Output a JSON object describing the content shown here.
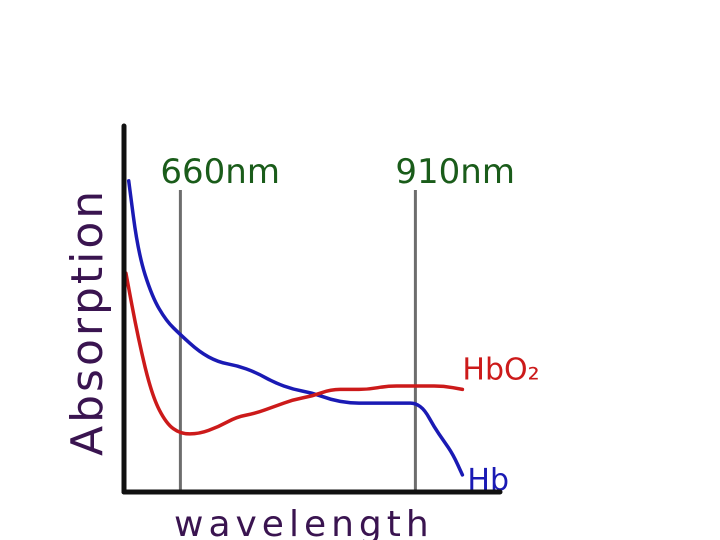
{
  "chart_data": {
    "type": "line",
    "title": "",
    "xlabel": "wavelength",
    "ylabel": "Absorption",
    "grid": false,
    "legend": "inline labels at line ends",
    "xlim": [
      600,
      1000
    ],
    "ylim": [
      0,
      100
    ],
    "series": [
      {
        "name": "Hb",
        "color": "#1a1ab4",
        "x": [
          605,
          615,
          630,
          645,
          660,
          680,
          700,
          720,
          740,
          760,
          780,
          800,
          820,
          840,
          860,
          880,
          900,
          910,
          920,
          930,
          940,
          950,
          960
        ],
        "y": [
          91,
          70,
          57,
          50,
          46,
          41,
          38,
          37,
          35,
          32,
          30,
          29,
          27,
          26,
          26,
          26,
          26,
          26,
          24,
          19,
          15,
          11,
          5
        ]
      },
      {
        "name": "HbO₂",
        "color": "#cc1a1a",
        "x": [
          602,
          615,
          630,
          645,
          660,
          680,
          700,
          720,
          740,
          760,
          780,
          800,
          820,
          840,
          860,
          880,
          900,
          910,
          920,
          940,
          960
        ],
        "y": [
          64,
          45,
          28,
          20,
          17,
          17,
          19,
          22,
          23,
          25,
          27,
          28,
          30,
          30,
          30,
          31,
          31,
          31,
          31,
          31,
          30
        ]
      }
    ],
    "markers": [
      {
        "x": 660,
        "label": "660nm",
        "color": "#1a5c1a"
      },
      {
        "x": 910,
        "label": "910nm",
        "color": "#1a5c1a"
      }
    ],
    "axis_color": "#111111",
    "ylabel_color": "#3a1450",
    "xlabel_color": "#3a1450",
    "marker_line_color": "#6d6d6d"
  }
}
